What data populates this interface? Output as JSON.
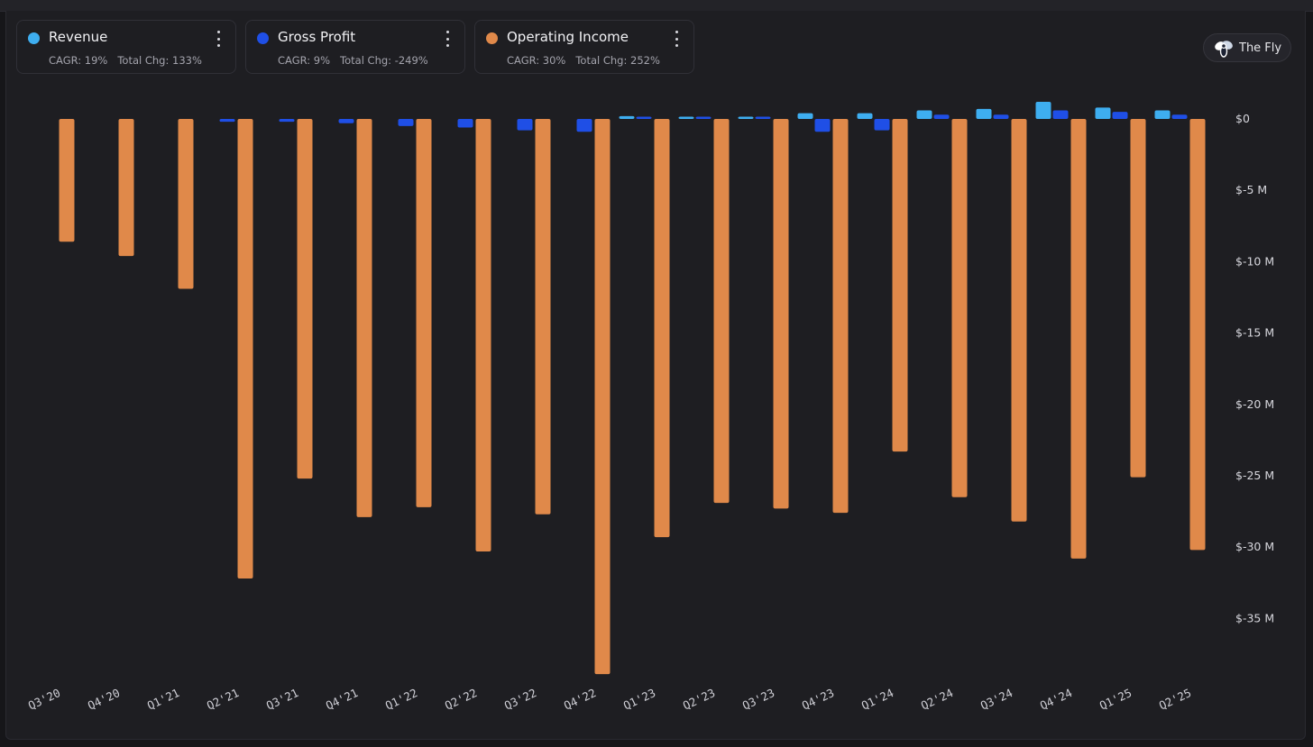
{
  "legend": [
    {
      "name": "Revenue",
      "cagr": "CAGR: 19%",
      "total_chg": "Total Chg: 133%",
      "color": "#3eaef0"
    },
    {
      "name": "Gross Profit",
      "cagr": "CAGR: 9%",
      "total_chg": "Total Chg: -249%",
      "color": "#1f4fe6"
    },
    {
      "name": "Operating Income",
      "cagr": "CAGR: 30%",
      "total_chg": "Total Chg: 252%",
      "color": "#e0894a"
    }
  ],
  "badge": {
    "label": "The Fly",
    "icon": "fly-logo-icon"
  },
  "chart_data": {
    "type": "bar",
    "categories": [
      "Q3'20",
      "Q4'20",
      "Q1'21",
      "Q2'21",
      "Q3'21",
      "Q4'21",
      "Q1'22",
      "Q2'22",
      "Q3'22",
      "Q4'22",
      "Q1'23",
      "Q2'23",
      "Q3'23",
      "Q4'23",
      "Q1'24",
      "Q2'24",
      "Q3'24",
      "Q4'24",
      "Q1'25",
      "Q2'25"
    ],
    "series": [
      {
        "name": "Revenue",
        "color": "#3eaef0",
        "values": [
          null,
          null,
          null,
          null,
          null,
          null,
          null,
          null,
          null,
          null,
          0.2,
          0.1,
          0.1,
          0.4,
          0.4,
          0.6,
          0.7,
          1.2,
          0.8,
          0.6
        ]
      },
      {
        "name": "Gross Profit",
        "color": "#1f4fe6",
        "values": [
          null,
          null,
          null,
          -0.2,
          -0.2,
          -0.3,
          -0.5,
          -0.6,
          -0.8,
          -0.9,
          0.05,
          0.05,
          0.05,
          -0.9,
          -0.8,
          0.3,
          0.3,
          0.6,
          0.5,
          0.3
        ]
      },
      {
        "name": "Operating Income",
        "color": "#e0894a",
        "values": [
          -8.6,
          -9.6,
          -11.9,
          -32.2,
          -25.2,
          -27.9,
          -27.2,
          -30.3,
          -27.7,
          -38.9,
          -29.3,
          -26.9,
          -27.3,
          -27.6,
          -23.3,
          -26.5,
          -28.2,
          -30.8,
          -25.1,
          -30.2
        ]
      }
    ],
    "yticks": [
      "$0",
      "$-5 M",
      "$-10 M",
      "$-15 M",
      "$-20 M",
      "$-25 M",
      "$-30 M",
      "$-35 M"
    ],
    "ytick_values": [
      0,
      -5,
      -10,
      -15,
      -20,
      -25,
      -30,
      -35
    ],
    "ylim": [
      -39.5,
      1.5
    ],
    "xlabel": "",
    "ylabel": "",
    "title": ""
  }
}
